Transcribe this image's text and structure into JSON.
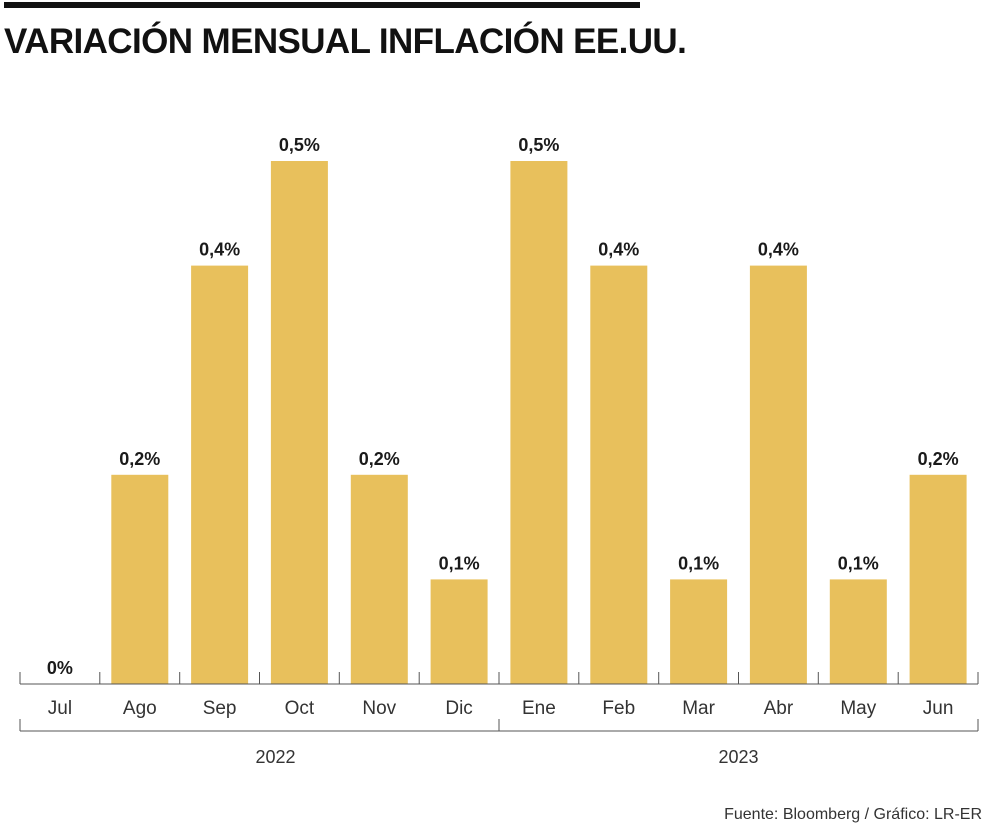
{
  "title": "VARIACIÓN MENSUAL INFLACIÓN EE.UU.",
  "source": "Fuente: Bloomberg / Gráfico: LR-ER",
  "colors": {
    "bar": "#e8c05c",
    "text": "#1a1a1a",
    "axis": "#555555"
  },
  "chart_data": {
    "type": "bar",
    "title": "VARIACIÓN MENSUAL INFLACIÓN EE.UU.",
    "xlabel": "",
    "ylabel": "",
    "ylim": [
      0,
      0.5
    ],
    "grid": false,
    "categories": [
      "Jul",
      "Ago",
      "Sep",
      "Oct",
      "Nov",
      "Dic",
      "Ene",
      "Feb",
      "Mar",
      "Abr",
      "May",
      "Jun"
    ],
    "values": [
      0,
      0.2,
      0.4,
      0.5,
      0.2,
      0.1,
      0.5,
      0.4,
      0.1,
      0.4,
      0.1,
      0.2
    ],
    "data_labels": [
      "0%",
      "0,2%",
      "0,4%",
      "0,5%",
      "0,2%",
      "0,1%",
      "0,5%",
      "0,4%",
      "0,1%",
      "0,4%",
      "0,1%",
      "0,2%"
    ],
    "groups": [
      {
        "label": "2022",
        "start": 0,
        "end": 5
      },
      {
        "label": "2023",
        "start": 6,
        "end": 11
      }
    ]
  }
}
